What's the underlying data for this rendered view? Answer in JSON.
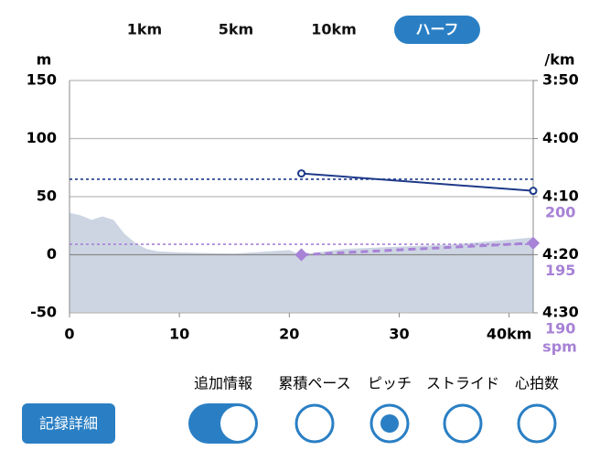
{
  "tabs": [
    "1km",
    "5km",
    "10km",
    "ハーフ"
  ],
  "selected_tab": 3,
  "chart_data": {
    "type": "line",
    "y_label": "m",
    "y2_label": "/km",
    "y3_label": "spm",
    "xlim": [
      0,
      42.195
    ],
    "xticks": [
      0,
      10,
      20,
      30,
      {
        "value": 40,
        "label": "40km"
      }
    ],
    "ylim": [
      -50,
      150
    ],
    "yticks": [
      150,
      100,
      50,
      0,
      -50
    ],
    "y2lim": [
      230,
      270
    ],
    "y2ticks": [
      {
        "value": 230,
        "label": "3:50"
      },
      {
        "value": 240,
        "label": "4:00"
      },
      {
        "value": 250,
        "label": "4:10"
      },
      {
        "value": 260,
        "label": "4:20"
      },
      {
        "value": 270,
        "label": "4:30"
      }
    ],
    "y3lim": [
      190,
      210
    ],
    "y3ticks": [
      200,
      195,
      190
    ],
    "grid": true,
    "series": [
      {
        "kind": "area",
        "axis": "y",
        "color": "#cdd5e3",
        "x": [
          0,
          1,
          2,
          3,
          4,
          5,
          6,
          7,
          8,
          10,
          15,
          20,
          21,
          25,
          30,
          35,
          40,
          42.195
        ],
        "values": [
          36,
          34,
          30,
          33,
          30,
          18,
          10,
          5,
          3,
          2,
          1,
          4,
          0,
          5,
          7,
          9,
          13,
          15
        ]
      },
      {
        "kind": "line",
        "axis": "y2",
        "color": "#1e3a8a",
        "x": [
          21.1,
          42.195
        ],
        "values": [
          246,
          249
        ]
      },
      {
        "kind": "dashed",
        "axis": "y3",
        "color": "#a782d6",
        "x": [
          21.1,
          42.195
        ],
        "values": [
          195,
          196
        ]
      }
    ],
    "reference_lines": [
      {
        "axis": "y2",
        "value": 247,
        "color": "#1e3a8a"
      },
      {
        "axis": "y3",
        "value": 195.9,
        "color": "#a782d6"
      }
    ]
  },
  "controls": {
    "toggle_label": "追加情報",
    "toggle_on": true,
    "options": [
      "累積ペース",
      "ピッチ",
      "ストライド",
      "心拍数"
    ],
    "selected_option": 1
  },
  "button": "記録詳細"
}
